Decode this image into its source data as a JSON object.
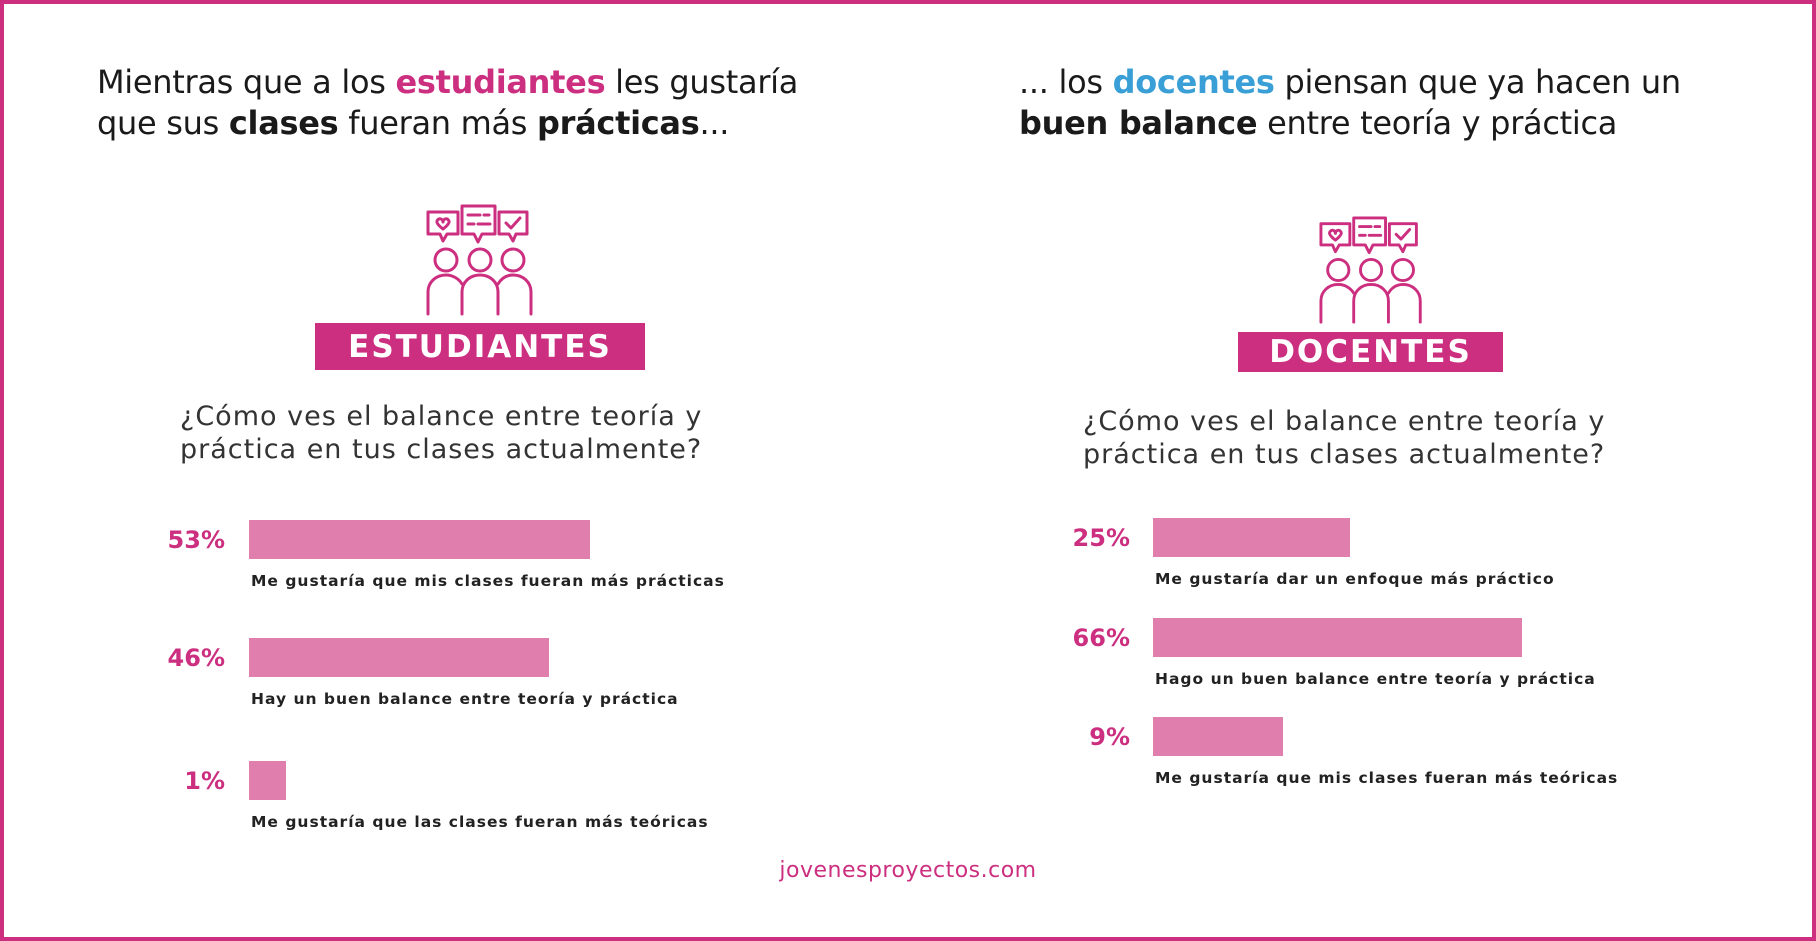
{
  "left_heading": {
    "l1a": "Mientras que a los ",
    "l1b": "estudiantes",
    "l1c": " les gustaría",
    "l2a": "que sus ",
    "l2b": "clases",
    "l2c": " fueran más ",
    "l2d": "prácticas",
    "l2e": "..."
  },
  "right_heading": {
    "l1a": "... los ",
    "l1b": "docentes",
    "l1c": " piensan que ya hacen un",
    "l2a": "buen balance",
    "l2b": " entre teoría y práctica"
  },
  "colors": {
    "accent": "#cc2f7f",
    "bar": "#e07fae",
    "blue": "#3a9fd6"
  },
  "chart_data": [
    {
      "type": "bar",
      "title": "ESTUDIANTES",
      "question_line1": "¿Cómo ves el balance entre teoría y",
      "question_line2": "práctica en tus clases actualmente?",
      "categories": [
        "Me gustaría que mis clases fueran más prácticas",
        "Hay un buen balance entre teoría y práctica",
        "Me gustaría que las clases fueran más teóricas"
      ],
      "values": [
        53,
        46,
        1
      ],
      "labels": [
        "53%",
        "46%",
        "1%"
      ]
    },
    {
      "type": "bar",
      "title": "DOCENTES",
      "question_line1": "¿Cómo ves el balance entre teoría y",
      "question_line2": "práctica en tus clases actualmente?",
      "categories": [
        "Me gustaría dar un enfoque más práctico",
        "Hago un buen balance entre teoría y práctica",
        "Me gustaría que mis clases fueran más teóricas"
      ],
      "values": [
        25,
        66,
        9
      ],
      "labels": [
        "25%",
        "66%",
        "9%"
      ]
    }
  ],
  "footer": "jovenesproyectos.com"
}
